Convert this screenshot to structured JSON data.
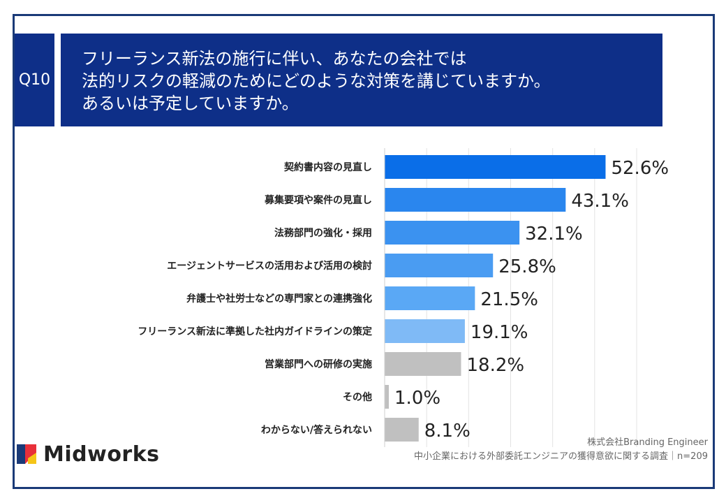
{
  "question": {
    "tag": "Q10",
    "lines": [
      "フリーランス新法の施行に伴い、あなたの会社では",
      "法的リスクの軽減のためにどのような対策を講じていますか。",
      "あるいは予定していますか。"
    ]
  },
  "chart_data": {
    "type": "bar",
    "orientation": "horizontal",
    "title": "フリーランス新法の施行に伴い、あなたの会社では法的リスクの軽減のためにどのような対策を講じていますか。あるいは予定していますか。",
    "categories": [
      "契約書内容の見直し",
      "募集要項や案件の見直し",
      "法務部門の強化・採用",
      "エージェントサービスの活用および活用の検討",
      "弁護士や社労士などの専門家との連携強化",
      "フリーランス新法に準拠した社内ガイドラインの策定",
      "営業部門への研修の実施",
      "その他",
      "わからない/答えられない"
    ],
    "values": [
      52.6,
      43.1,
      32.1,
      25.8,
      21.5,
      19.1,
      18.2,
      1.0,
      8.1
    ],
    "value_labels": [
      "52.6%",
      "43.1%",
      "32.1%",
      "25.8%",
      "21.5%",
      "19.1%",
      "18.2%",
      "1.0%",
      "8.1%"
    ],
    "colors": [
      "#0a6ee8",
      "#2a86ee",
      "#3b92f0",
      "#4a9cf2",
      "#5aa8f5",
      "#7fbaf6",
      "#c0c0c0",
      "#c0c0c0",
      "#c0c0c0"
    ],
    "xlim": [
      0,
      60
    ],
    "unit": "%"
  },
  "logo": {
    "text": "Midworks",
    "colors": [
      "#1a3a78",
      "#e8303a",
      "#f5c518"
    ]
  },
  "source": {
    "line1": "株式会社Branding Engineer",
    "line2": "中小企業における外部委託エンジニアの獲得意欲に関する調査｜n=209"
  }
}
